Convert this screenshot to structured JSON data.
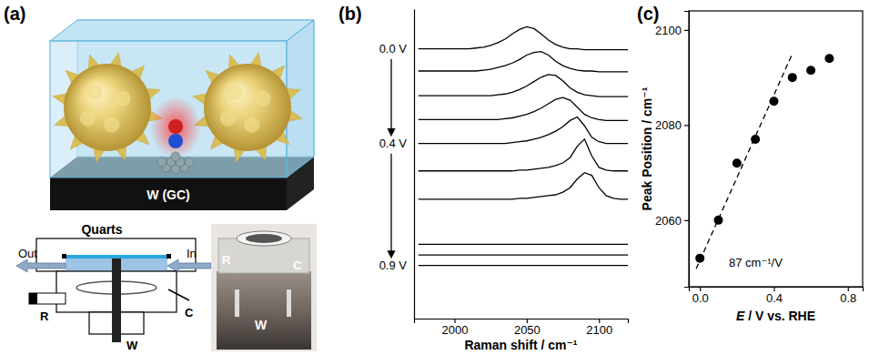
{
  "diagram": {
    "label": "(a)",
    "scene_label": "W (GC)",
    "cell": {
      "title": "Quarts",
      "outlet": "Out",
      "inlet": "In",
      "reference": "R",
      "counter": "C",
      "working": "W"
    },
    "photo": {
      "reference": "R",
      "counter": "C",
      "working": "W"
    }
  },
  "chart_data": [
    {
      "type": "line",
      "title": "(b)",
      "x_label": "Raman shift / cm⁻¹",
      "color": "#000000",
      "tick_labels": "x",
      "xlim": [
        1972,
        2120
      ],
      "xticks": [
        2000,
        2050,
        2100
      ],
      "ylim": [
        0,
        35
      ],
      "annotations": [
        "0.0 V",
        "0.4 V",
        "0.9 V"
      ],
      "x": [
        1975,
        1980,
        1985,
        1990,
        1995,
        2000,
        2005,
        2010,
        2015,
        2020,
        2025,
        2030,
        2035,
        2040,
        2045,
        2050,
        2055,
        2060,
        2065,
        2070,
        2075,
        2080,
        2085,
        2090,
        2095,
        2100,
        2105,
        2110,
        2115,
        2120
      ],
      "series": [
        {
          "values": [
            30.5,
            30.5,
            30.5,
            30.5,
            30.5,
            30.5,
            30.5,
            30.5,
            30.6,
            30.7,
            30.9,
            31.2,
            31.6,
            32.2,
            32.7,
            33.0,
            32.8,
            32.2,
            31.5,
            31.0,
            30.7,
            30.5,
            30.5,
            30.4,
            30.4,
            30.4,
            30.4,
            30.4,
            30.4,
            30.4
          ]
        },
        {
          "values": [
            28,
            28,
            28,
            28,
            28,
            28,
            28,
            28,
            28,
            28.1,
            28.2,
            28.4,
            28.6,
            28.9,
            29.3,
            29.8,
            30.1,
            30.2,
            29.8,
            29.1,
            28.6,
            28.3,
            28.1,
            28,
            28,
            27.9,
            27.9,
            27.9,
            27.9,
            27.9
          ]
        },
        {
          "values": [
            25.2,
            25.2,
            25.2,
            25.2,
            25.2,
            25.2,
            25.2,
            25.2,
            25.2,
            25.2,
            25.2,
            25.3,
            25.4,
            25.6,
            25.9,
            26.3,
            26.8,
            27.3,
            27.6,
            27.5,
            26.9,
            26.1,
            25.6,
            25.3,
            25.2,
            25.1,
            25.1,
            25.1,
            25.1,
            25.1
          ]
        },
        {
          "values": [
            22.5,
            22.5,
            22.5,
            22.5,
            22.5,
            22.5,
            22.5,
            22.5,
            22.5,
            22.5,
            22.5,
            22.5,
            22.6,
            22.7,
            22.9,
            23.1,
            23.4,
            23.8,
            24.3,
            24.8,
            25.0,
            24.7,
            23.9,
            23.1,
            22.7,
            22.5,
            22.4,
            22.4,
            22.4,
            22.4
          ]
        },
        {
          "values": [
            19.8,
            19.8,
            19.8,
            19.8,
            19.8,
            19.8,
            19.8,
            19.8,
            19.8,
            19.8,
            19.8,
            19.8,
            19.8,
            19.9,
            20.0,
            20.1,
            20.3,
            20.5,
            20.8,
            21.2,
            21.7,
            22.4,
            22.8,
            21.8,
            20.5,
            20.0,
            19.8,
            19.8,
            19.8,
            19.8
          ]
        },
        {
          "values": [
            16.7,
            16.7,
            16.7,
            16.7,
            16.7,
            16.7,
            16.7,
            16.7,
            16.7,
            16.7,
            16.7,
            16.7,
            16.7,
            16.7,
            16.8,
            16.8,
            16.9,
            17.0,
            17.1,
            17.3,
            17.6,
            18.2,
            19.5,
            20.3,
            18.4,
            17.1,
            16.8,
            16.7,
            16.7,
            16.7
          ]
        },
        {
          "values": [
            13.5,
            13.5,
            13.5,
            13.5,
            13.5,
            13.5,
            13.5,
            13.5,
            13.5,
            13.5,
            13.5,
            13.5,
            13.5,
            13.5,
            13.6,
            13.6,
            13.7,
            13.8,
            13.9,
            14.0,
            14.3,
            14.8,
            15.8,
            16.5,
            16.2,
            14.8,
            13.9,
            13.6,
            13.5,
            13.5
          ]
        },
        {
          "values": [
            8.4,
            8.4,
            8.4,
            8.4,
            8.4,
            8.4,
            8.4,
            8.4,
            8.4,
            8.4,
            8.4,
            8.4,
            8.4,
            8.4,
            8.4,
            8.4,
            8.4,
            8.4,
            8.4,
            8.4,
            8.4,
            8.4,
            8.4,
            8.4,
            8.4,
            8.4,
            8.4,
            8.4,
            8.4,
            8.4
          ]
        },
        {
          "values": [
            7.2,
            7.2,
            7.2,
            7.2,
            7.2,
            7.2,
            7.2,
            7.2,
            7.2,
            7.2,
            7.2,
            7.2,
            7.2,
            7.2,
            7.2,
            7.2,
            7.2,
            7.2,
            7.2,
            7.2,
            7.2,
            7.2,
            7.2,
            7.2,
            7.2,
            7.2,
            7.2,
            7.2,
            7.2,
            7.2
          ]
        },
        {
          "values": [
            6.0,
            6.0,
            6.0,
            6.0,
            6.0,
            6.0,
            6.0,
            6.0,
            6.0,
            6.0,
            6.0,
            6.0,
            6.0,
            6.0,
            6.0,
            6.0,
            6.0,
            6.0,
            6.0,
            6.0,
            6.0,
            6.0,
            6.0,
            6.0,
            6.0,
            6.0,
            6.0,
            6.0,
            6.0,
            6.0
          ]
        }
      ]
    },
    {
      "type": "scatter",
      "title": "(c)",
      "x_label": "E / V vs. RHE",
      "y_label": "Peak Position / cm⁻¹",
      "xlim": [
        -0.06,
        0.88
      ],
      "xticks": [
        {
          "value": 0,
          "label": "0.0"
        },
        0.4,
        0.8
      ],
      "ylim": [
        2046,
        2104
      ],
      "yticks": [
        2060,
        2080,
        2100
      ],
      "annotations": [
        "87 cm⁻¹/V"
      ],
      "series": [
        {
          "type": "scatter",
          "marker": "circle",
          "color": "#000000",
          "x": [
            0,
            0.1,
            0.2,
            0.3,
            0.4,
            0.5,
            0.6,
            0.7
          ],
          "values": [
            2052,
            2060,
            2072,
            2077,
            2085,
            2090,
            2091.5,
            2094
          ]
        },
        {
          "type": "line",
          "line_style": "dashed",
          "color": "#000000",
          "x": [
            -0.02,
            0.5
          ],
          "values": [
            2049.8,
            2095
          ]
        }
      ]
    }
  ]
}
